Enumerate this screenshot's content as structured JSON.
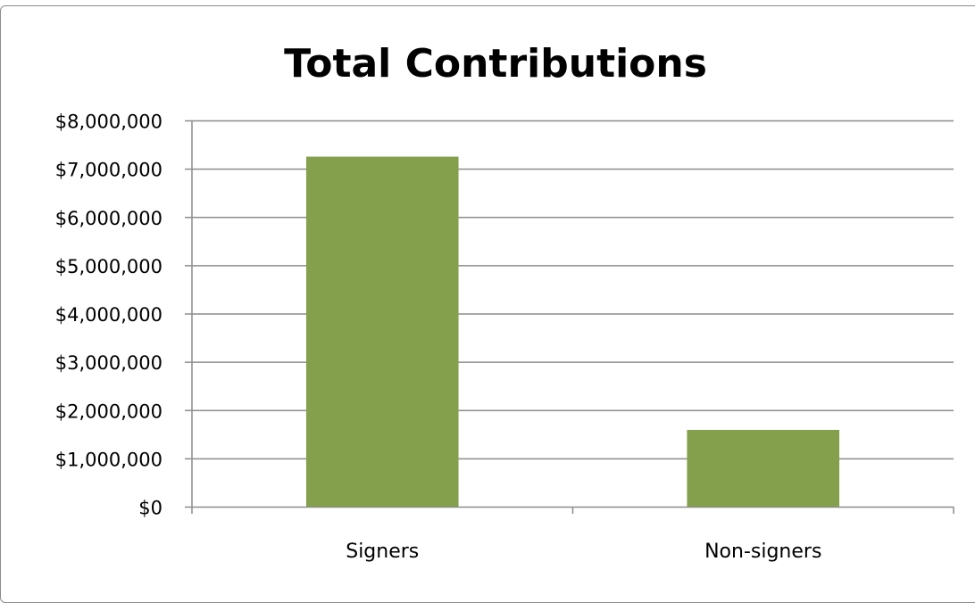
{
  "chart_data": {
    "type": "bar",
    "title": "Total Contributions",
    "xlabel": "",
    "ylabel": "",
    "categories": [
      "Signers",
      "Non-signers"
    ],
    "values": [
      7250000,
      1590000
    ],
    "ylim": [
      0,
      8000000
    ],
    "yticks": [
      0,
      1000000,
      2000000,
      3000000,
      4000000,
      5000000,
      6000000,
      7000000,
      8000000
    ],
    "ytick_labels": [
      "$0",
      "$1,000,000",
      "$2,000,000",
      "$3,000,000",
      "$4,000,000",
      "$5,000,000",
      "$6,000,000",
      "$7,000,000",
      "$8,000,000"
    ],
    "grid": true,
    "legend": "none",
    "colors": {
      "bar": "#84a04c",
      "grid": "#8c8c8c",
      "axis": "#8c8c8c"
    }
  }
}
